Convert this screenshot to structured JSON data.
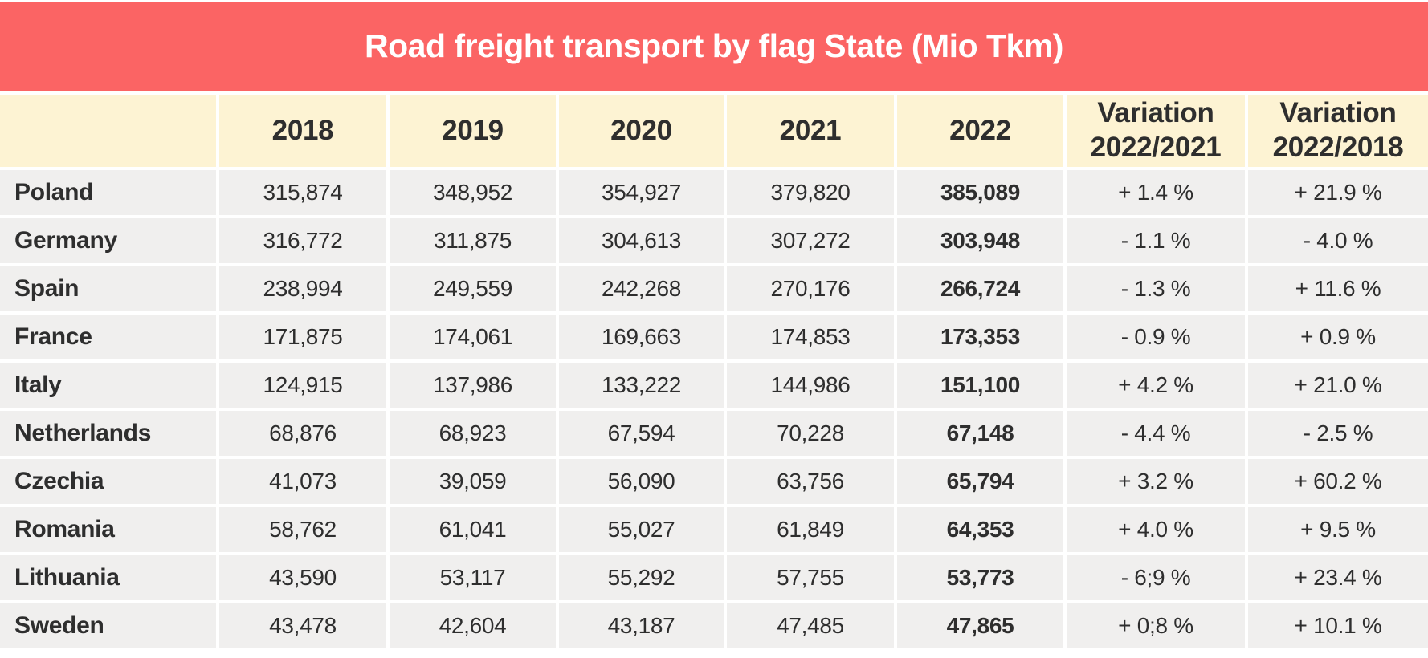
{
  "title": "Road freight transport by flag State (Mio Tkm)",
  "chart_data": {
    "type": "table",
    "title": "Road freight transport by flag State (Mio Tkm)",
    "columns": [
      "",
      "2018",
      "2019",
      "2020",
      "2021",
      "2022",
      "Variation\n2022/2021",
      "Variation\n2022/2018"
    ],
    "rows": [
      {
        "country": "Poland",
        "cells": [
          "315,874",
          "348,952",
          "354,927",
          "379,820",
          "385,089",
          "+ 1.4 %",
          "+ 21.9 %"
        ]
      },
      {
        "country": "Germany",
        "cells": [
          "316,772",
          "311,875",
          "304,613",
          "307,272",
          "303,948",
          "- 1.1 %",
          "- 4.0 %"
        ]
      },
      {
        "country": "Spain",
        "cells": [
          "238,994",
          "249,559",
          "242,268",
          "270,176",
          "266,724",
          "- 1.3 %",
          "+ 11.6 %"
        ]
      },
      {
        "country": "France",
        "cells": [
          "171,875",
          "174,061",
          "169,663",
          "174,853",
          "173,353",
          "- 0.9 %",
          "+ 0.9 %"
        ]
      },
      {
        "country": "Italy",
        "cells": [
          "124,915",
          "137,986",
          "133,222",
          "144,986",
          "151,100",
          "+ 4.2 %",
          "+ 21.0 %"
        ]
      },
      {
        "country": "Netherlands",
        "cells": [
          "68,876",
          "68,923",
          "67,594",
          "70,228",
          "67,148",
          "- 4.4 %",
          "- 2.5 %"
        ]
      },
      {
        "country": "Czechia",
        "cells": [
          "41,073",
          "39,059",
          "56,090",
          "63,756",
          "65,794",
          "+ 3.2 %",
          "+ 60.2 %"
        ]
      },
      {
        "country": "Romania",
        "cells": [
          "58,762",
          "61,041",
          "55,027",
          "61,849",
          "64,353",
          "+ 4.0 %",
          "+ 9.5 %"
        ]
      },
      {
        "country": "Lithuania",
        "cells": [
          "43,590",
          "53,117",
          "55,292",
          "57,755",
          "53,773",
          "- 6;9 %",
          "+ 23.4 %"
        ]
      },
      {
        "country": "Sweden",
        "cells": [
          "43,478",
          "42,604",
          "43,187",
          "47,485",
          "47,865",
          "+ 0;8 %",
          "+ 10.1 %"
        ]
      }
    ]
  },
  "colors": {
    "banner_red": "#fb6464",
    "header_cream": "#fdf3d3",
    "row_gray": "#f0efee",
    "title_text": "#ffffff",
    "cell_text": "#2e2e2e"
  }
}
